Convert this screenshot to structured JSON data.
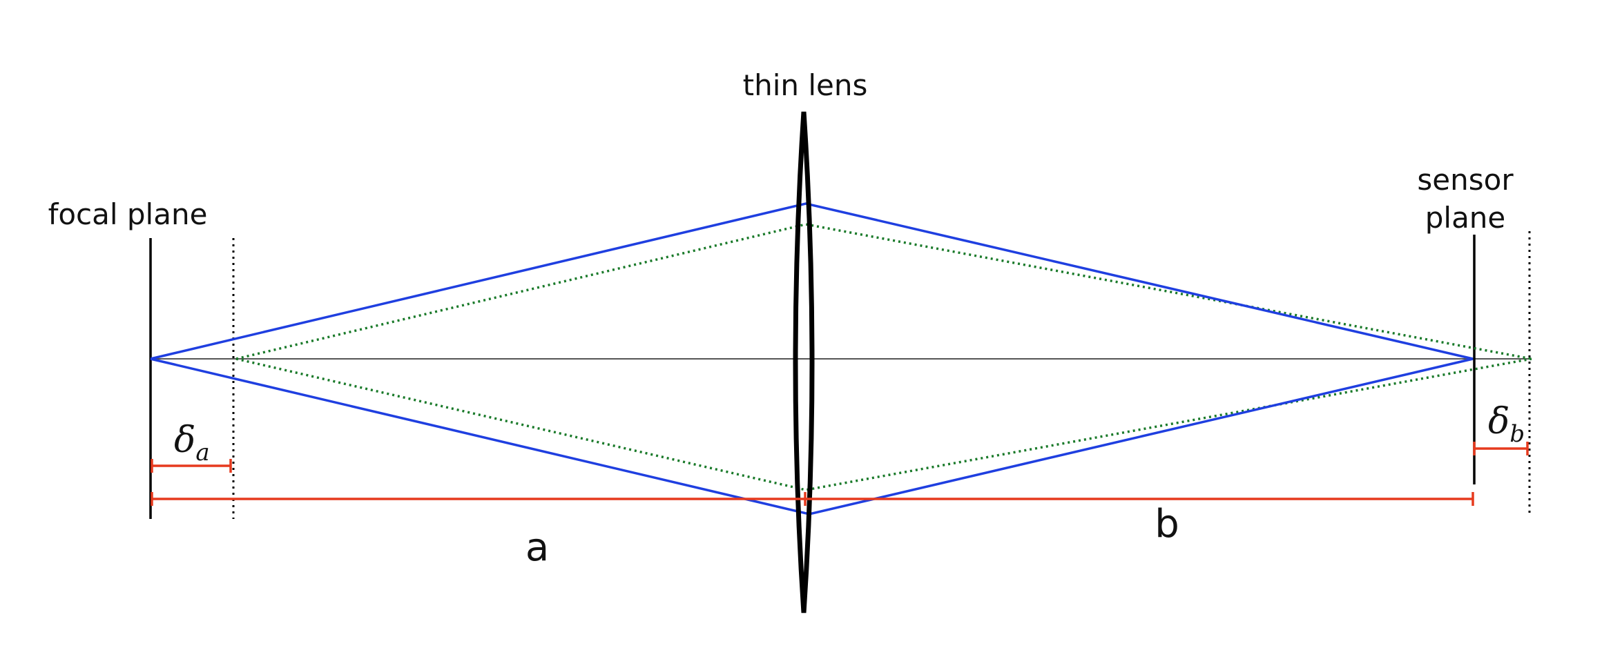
{
  "labels": {
    "thin_lens": "thin lens",
    "focal_plane": "focal plane",
    "sensor_line1": "sensor",
    "sensor_line2": "plane",
    "a": "a",
    "b": "b",
    "delta": "δ",
    "delta_a_sub": "a",
    "delta_b_sub": "b"
  },
  "colors": {
    "solid_ray": "#1f3fe0",
    "dotted_ray": "#1a7a2a",
    "measure": "#e63a1e",
    "plane": "#000000",
    "axis": "#555555"
  }
}
